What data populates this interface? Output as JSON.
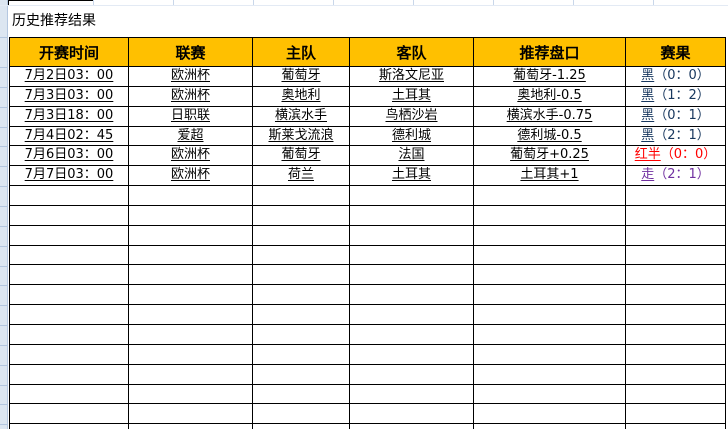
{
  "title": "历史推荐结果",
  "table": {
    "headers": [
      "开赛时间",
      "联赛",
      "主队",
      "客队",
      "推荐盘口",
      "赛果"
    ],
    "rows": [
      {
        "time": "7月2日03：00",
        "league": "欧洲杯",
        "home": "葡萄牙",
        "away": "斯洛文尼亚",
        "handicap": "葡萄牙-1.25",
        "result_word": "黑",
        "result_score": "（0：0）",
        "result_color": "navy"
      },
      {
        "time": "7月3日03：00",
        "league": "欧洲杯",
        "home": "奥地利",
        "away": "土耳其",
        "handicap": "奥地利-0.5",
        "result_word": "黑",
        "result_score": "（1：2）",
        "result_color": "navy"
      },
      {
        "time": "7月3日18：00",
        "league": "日职联",
        "home": "横滨水手",
        "away": "鸟栖沙岩",
        "handicap": "横滨水手-0.75",
        "result_word": "黑",
        "result_score": "（0：1）",
        "result_color": "navy"
      },
      {
        "time": "7月4日02：45",
        "league": "爱超",
        "home": "斯莱戈流浪",
        "away": "德利城",
        "handicap": "德利城-0.5",
        "result_word": "黑",
        "result_score": "（2：1）",
        "result_color": "navy"
      },
      {
        "time": "7月6日03：00",
        "league": "欧洲杯",
        "home": "葡萄牙",
        "away": "法国",
        "handicap": "葡萄牙+0.25",
        "result_word": "红半",
        "result_score": "（0：0）",
        "result_color": "red"
      },
      {
        "time": "7月7日03：00",
        "league": "欧洲杯",
        "home": "荷兰",
        "away": "土耳其",
        "handicap": "土耳其+1",
        "result_word": "走",
        "result_score": "（2：1）",
        "result_color": "purple"
      }
    ],
    "empty_row_count": 13
  },
  "colors": {
    "header_bg": "#FFC000",
    "navy": "#17375E",
    "red": "#FF0000",
    "purple": "#7030A0",
    "border_black": "#000000",
    "strip_bg": "#DCE6F1",
    "gridline": "#B4C7E0"
  }
}
